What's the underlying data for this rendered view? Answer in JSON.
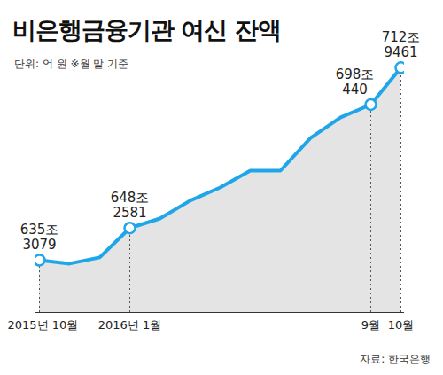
{
  "chart_data": {
    "type": "line",
    "title": "비은행금융기관 여신 잔액",
    "subtitle": "단위: 억 원 ※월 말 기준",
    "source": "자료: 한국은행",
    "categories": [
      "2015년 10월",
      null,
      null,
      "2016년 1월",
      null,
      null,
      null,
      null,
      null,
      null,
      null,
      "9월",
      "10월"
    ],
    "values": [
      6353079,
      6339000,
      6364000,
      6482581,
      6521000,
      6593000,
      6646000,
      6714000,
      6714000,
      6846000,
      6929000,
      6980440,
      7129461
    ],
    "value_labels": [
      "635조 3079",
      null,
      null,
      "648조 2581",
      null,
      null,
      null,
      null,
      null,
      null,
      null,
      "698조 440",
      "712조 9461"
    ],
    "data_labels": true,
    "color": "#1ea6e9",
    "marker": "circle",
    "ylim": [
      6142000,
      7329000
    ],
    "tick_labels": "x"
  }
}
